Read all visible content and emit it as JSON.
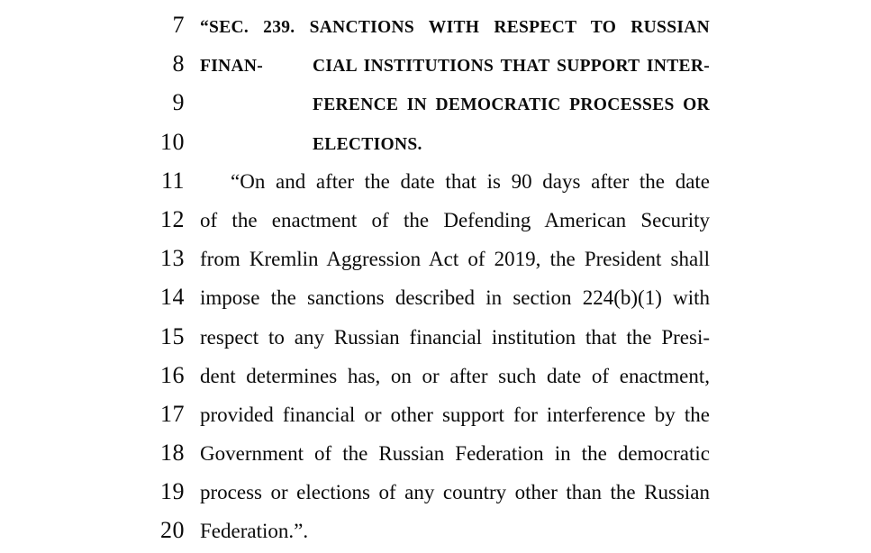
{
  "page": {
    "background_color": "#ffffff",
    "text_color": "#0b0b0b"
  },
  "bill": {
    "lines": [
      {
        "number": "7",
        "text": "“SEC. 239. SANCTIONS WITH RESPECT TO RUSSIAN FINAN-"
      },
      {
        "number": "8",
        "text": "CIAL INSTITUTIONS THAT SUPPORT INTER-"
      },
      {
        "number": "9",
        "text": "FERENCE IN DEMOCRATIC PROCESSES OR"
      },
      {
        "number": "10",
        "text": "ELECTIONS."
      },
      {
        "number": "11",
        "text": "“On and after the date that is 90 days after the date"
      },
      {
        "number": "12",
        "text": "of the enactment of the Defending American Security"
      },
      {
        "number": "13",
        "text": "from Kremlin Aggression Act of 2019, the President shall"
      },
      {
        "number": "14",
        "text": "impose the sanctions described in section 224(b)(1) with"
      },
      {
        "number": "15",
        "text": "respect to any Russian financial institution that the Presi-"
      },
      {
        "number": "16",
        "text": "dent determines has, on or after such date of enactment,"
      },
      {
        "number": "17",
        "text": "provided financial or other support for interference by the"
      },
      {
        "number": "18",
        "text": "Government of the Russian Federation in the democratic"
      },
      {
        "number": "19",
        "text": "process or elections of any country other than the Russian"
      },
      {
        "number": "20",
        "text": "Federation.”."
      }
    ]
  }
}
